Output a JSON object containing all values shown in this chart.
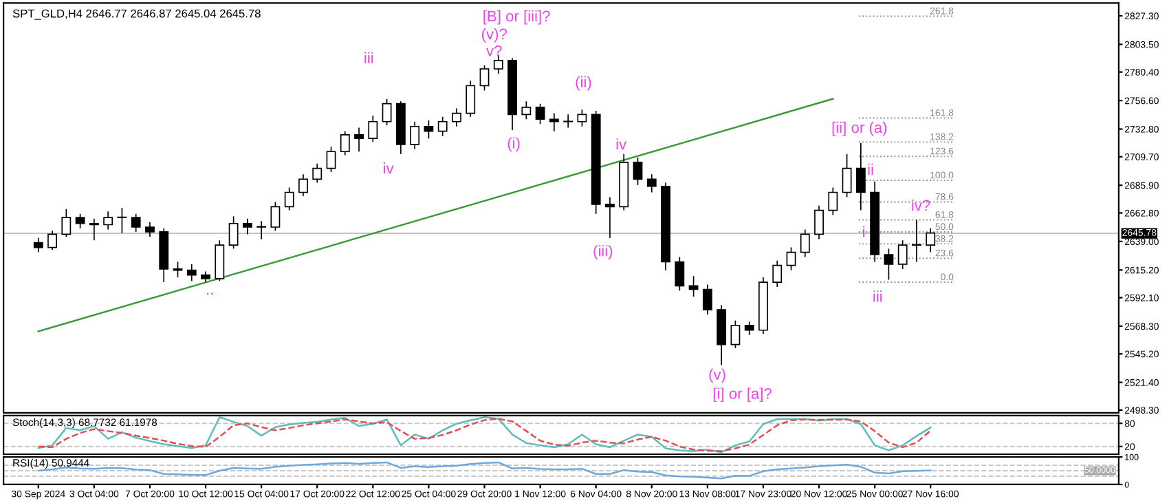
{
  "chart_data": [
    {
      "type": "candlestick",
      "title": "SPT_GLD,H4 2646.77 2646.87 2645.04 2645.78",
      "categories": [
        null,
        null,
        null,
        null,
        null,
        null,
        null,
        null,
        null,
        null,
        null,
        null,
        null,
        null,
        null,
        null,
        null,
        null,
        null,
        null,
        null,
        null,
        null,
        null,
        null,
        null,
        null,
        null,
        null,
        null,
        null,
        null,
        null,
        null,
        null,
        null,
        null,
        null,
        null,
        null,
        null,
        null,
        null,
        null,
        null,
        null,
        null,
        null,
        null,
        null,
        null,
        null,
        null,
        null,
        null,
        null,
        null,
        null,
        null,
        null,
        null,
        null,
        null,
        null,
        null,
        null,
        null,
        null,
        null,
        null,
        null,
        null,
        null,
        null,
        null,
        null,
        null,
        null,
        null,
        null
      ],
      "color": "#000000",
      "ohlc": [
        null,
        null,
        [
          2638,
          2642,
          2630,
          2634
        ],
        [
          2634,
          2648,
          2632,
          2645
        ],
        [
          2645,
          2666,
          2643,
          2659
        ],
        [
          2659,
          2662,
          2650,
          2654
        ],
        [
          2654,
          2658,
          2640,
          2653
        ],
        [
          2653,
          2664,
          2649,
          2659
        ],
        [
          2659,
          2667,
          2646,
          2659
        ],
        [
          2659,
          2662,
          2647,
          2651
        ],
        [
          2651,
          2655,
          2643,
          2647
        ],
        [
          2647,
          2650,
          2605,
          2616
        ],
        [
          2616,
          2622,
          2609,
          2615
        ],
        [
          2615,
          2620,
          2606,
          2611
        ],
        [
          2611,
          2614,
          2605,
          2608
        ],
        [
          2608,
          2640,
          2606,
          2636
        ],
        [
          2636,
          2660,
          2633,
          2654
        ],
        [
          2654,
          2658,
          2645,
          2651
        ],
        [
          2651,
          2656,
          2641,
          2651
        ],
        [
          2651,
          2672,
          2648,
          2668
        ],
        [
          2668,
          2684,
          2665,
          2680
        ],
        [
          2680,
          2695,
          2677,
          2691
        ],
        [
          2691,
          2704,
          2688,
          2700
        ],
        [
          2700,
          2718,
          2697,
          2714
        ],
        [
          2714,
          2731,
          2711,
          2728
        ],
        [
          2728,
          2734,
          2714,
          2725
        ],
        [
          2725,
          2744,
          2722,
          2739
        ],
        [
          2739,
          2758,
          2736,
          2754
        ],
        [
          2754,
          2756,
          2712,
          2720
        ],
        [
          2720,
          2739,
          2716,
          2735
        ],
        [
          2735,
          2740,
          2725,
          2731
        ],
        [
          2731,
          2743,
          2727,
          2739
        ],
        [
          2739,
          2750,
          2735,
          2746
        ],
        [
          2746,
          2773,
          2743,
          2769
        ],
        [
          2769,
          2786,
          2765,
          2783
        ],
        [
          2783,
          2795,
          2779,
          2790
        ],
        [
          2790,
          2792,
          2732,
          2745
        ],
        [
          2745,
          2756,
          2741,
          2751
        ],
        [
          2751,
          2754,
          2737,
          2741
        ],
        [
          2741,
          2746,
          2731,
          2739
        ],
        [
          2739,
          2745,
          2734,
          2739
        ],
        [
          2739,
          2749,
          2735,
          2745
        ],
        [
          2745,
          2748,
          2662,
          2670
        ],
        [
          2670,
          2676,
          2642,
          2668
        ],
        [
          2668,
          2712,
          2665,
          2705
        ],
        [
          2705,
          2709,
          2686,
          2691
        ],
        [
          2691,
          2695,
          2680,
          2685
        ],
        [
          2685,
          2688,
          2615,
          2622
        ],
        [
          2622,
          2626,
          2598,
          2602
        ],
        [
          2602,
          2610,
          2593,
          2599
        ],
        [
          2599,
          2603,
          2578,
          2582
        ],
        [
          2582,
          2586,
          2536,
          2553
        ],
        [
          2553,
          2573,
          2550,
          2569
        ],
        [
          2569,
          2572,
          2561,
          2565
        ],
        [
          2565,
          2609,
          2562,
          2605
        ],
        [
          2605,
          2623,
          2601,
          2619
        ],
        [
          2619,
          2634,
          2615,
          2630
        ],
        [
          2630,
          2649,
          2626,
          2645
        ],
        [
          2645,
          2669,
          2641,
          2665
        ],
        [
          2665,
          2684,
          2661,
          2680
        ],
        [
          2680,
          2712,
          2676,
          2700
        ],
        [
          2700,
          2721,
          2665,
          2680
        ],
        [
          2680,
          2689,
          2622,
          2628
        ],
        [
          2628,
          2633,
          2607,
          2620
        ],
        [
          2620,
          2640,
          2616,
          2636
        ],
        [
          2636,
          2657,
          2622,
          2636
        ],
        [
          2636,
          2650,
          2630,
          2646
        ],
        null,
        null,
        null,
        null,
        null,
        null,
        null,
        null,
        null,
        null,
        null,
        null,
        null
      ],
      "series": [
        {
          "type": "line",
          "color": "#3a9a3a",
          "values": [
            null,
            null,
            2564,
            null,
            null,
            null,
            null,
            null,
            null,
            null,
            null,
            null,
            null,
            null,
            null,
            null,
            null,
            null,
            null,
            null,
            null,
            null,
            null,
            null,
            null,
            null,
            null,
            null,
            null,
            null,
            null,
            null,
            null,
            null,
            null,
            null,
            null,
            null,
            null,
            null,
            null,
            null,
            null,
            null,
            null,
            null,
            null,
            null,
            null,
            null,
            null,
            null,
            null,
            null,
            null,
            null,
            null,
            null,
            null,
            2758,
            null,
            null,
            null,
            null,
            null,
            null,
            null,
            null,
            null,
            null,
            null,
            null,
            null,
            null,
            null,
            null,
            null,
            null,
            null,
            null
          ]
        }
      ],
      "ylim": [
        2496,
        2838
      ],
      "yticks": [
        {
          "value": 2498.3,
          "label": "2498.30"
        },
        {
          "value": 2521.4,
          "label": "2521.40"
        },
        {
          "value": 2545.2,
          "label": "2545.20"
        },
        {
          "value": 2568.3,
          "label": "2568.30"
        },
        {
          "value": 2592.1,
          "label": "2592.10"
        },
        {
          "value": 2615.2,
          "label": "2615.20"
        },
        {
          "value": 2639.0,
          "label": "2639.00"
        },
        {
          "value": 2662.8,
          "label": "2662.80"
        },
        {
          "value": 2685.9,
          "label": "2685.90"
        },
        {
          "value": 2709.7,
          "label": "2709.70"
        },
        {
          "value": 2732.8,
          "label": "2732.80"
        },
        {
          "value": 2756.6,
          "label": "2756.60"
        },
        {
          "value": 2780.4,
          "label": "2780.40"
        },
        {
          "value": 2803.5,
          "label": "2803.50"
        },
        {
          "value": 2827.3,
          "label": "2827.30"
        }
      ],
      "ref_lines": [
        {
          "axis": "y",
          "value": 2645.78,
          "label": "2645.78",
          "color": "#c0c0c0",
          "line_style": "solid"
        },
        {
          "axis": "y",
          "value": 2827,
          "color": "#909090",
          "line_style": "dotted"
        },
        {
          "axis": "y",
          "value": 2742,
          "color": "#909090",
          "line_style": "dotted"
        },
        {
          "axis": "y",
          "value": 2722,
          "color": "#909090",
          "line_style": "dotted"
        },
        {
          "axis": "y",
          "value": 2710,
          "color": "#909090",
          "line_style": "dotted"
        },
        {
          "axis": "y",
          "value": 2690,
          "color": "#909090",
          "line_style": "dotted"
        },
        {
          "axis": "y",
          "value": 2672,
          "color": "#909090",
          "line_style": "dotted"
        },
        {
          "axis": "y",
          "value": 2657,
          "color": "#909090",
          "line_style": "dotted"
        },
        {
          "axis": "y",
          "value": 2647,
          "color": "#909090",
          "line_style": "dotted"
        },
        {
          "axis": "y",
          "value": 2637,
          "color": "#909090",
          "line_style": "dotted"
        },
        {
          "axis": "y",
          "value": 2625,
          "color": "#909090",
          "line_style": "dotted"
        },
        {
          "axis": "y",
          "value": 2605,
          "color": "#909090",
          "line_style": "dotted"
        }
      ],
      "annotations": [
        "[B] or [iii]?",
        "(v)?",
        "v?",
        "iii",
        "iv",
        "(i)",
        "(ii)",
        "iv",
        "(iii)",
        "(v)",
        "[i] or [a]?",
        "[ii] or (a)",
        "ii",
        "i",
        "iii",
        "iv?",
        "..",
        "261.8",
        "161.8",
        "138.2",
        "123.6",
        "100.0",
        "78.6",
        "61.8",
        "50.0",
        "38.2",
        "23.6",
        "0.0"
      ],
      "tick_labels": "y",
      "grid": false,
      "legend": false
    },
    {
      "type": "line",
      "title": "Stoch(14,3,3) 68.7732 61.1978",
      "categories": [
        null,
        null,
        null,
        null,
        null,
        null,
        null,
        null,
        null,
        null,
        null,
        null,
        null,
        null,
        null,
        null,
        null,
        null,
        null,
        null,
        null,
        null,
        null,
        null,
        null,
        null,
        null,
        null,
        null,
        null,
        null,
        null,
        null,
        null,
        null,
        null,
        null,
        null,
        null,
        null,
        null,
        null,
        null,
        null,
        null,
        null,
        null,
        null,
        null,
        null,
        null,
        null,
        null,
        null,
        null,
        null,
        null,
        null,
        null,
        null,
        null,
        null,
        null,
        null,
        null,
        null,
        null,
        null,
        null,
        null,
        null,
        null,
        null,
        null,
        null,
        null,
        null,
        null,
        null,
        null
      ],
      "series": [
        {
          "color": "#5fbcbc",
          "line_style": "solid",
          "values": [
            null,
            null,
            16,
            23,
            68,
            62,
            73,
            40,
            57,
            43,
            34,
            26,
            21,
            16,
            23,
            96,
            84,
            73,
            48,
            70,
            77,
            81,
            84,
            90,
            94,
            73,
            79,
            90,
            23,
            51,
            40,
            62,
            79,
            88,
            96,
            92,
            51,
            29,
            23,
            18,
            26,
            51,
            26,
            18,
            35,
            51,
            45,
            15,
            10,
            8,
            12,
            5,
            23,
            33,
            78,
            91,
            91,
            91,
            87,
            91,
            91,
            78,
            23,
            10,
            23,
            47,
            69,
            null,
            null,
            null,
            null,
            null,
            null,
            null,
            null,
            null,
            null,
            null,
            null,
            null
          ]
        },
        {
          "color": "#e05050",
          "line_style": "dashed",
          "values": [
            null,
            null,
            20,
            18,
            40,
            55,
            65,
            60,
            55,
            48,
            42,
            35,
            27,
            21,
            19,
            45,
            75,
            80,
            70,
            62,
            68,
            75,
            80,
            85,
            90,
            85,
            80,
            83,
            60,
            40,
            42,
            50,
            62,
            77,
            88,
            92,
            85,
            60,
            35,
            25,
            22,
            30,
            35,
            30,
            28,
            38,
            45,
            35,
            20,
            12,
            9,
            8,
            15,
            25,
            50,
            75,
            88,
            90,
            89,
            89,
            90,
            85,
            60,
            30,
            18,
            30,
            61,
            null,
            null,
            null,
            null,
            null,
            null,
            null,
            null,
            null,
            null,
            null,
            null,
            null
          ]
        }
      ],
      "ylim": [
        0,
        100
      ],
      "yticks": [
        20,
        80
      ],
      "ref_lines": [
        {
          "axis": "y",
          "value": 80,
          "color": "#c8c8c8",
          "line_style": "dashed"
        },
        {
          "axis": "y",
          "value": 20,
          "color": "#c8c8c8",
          "line_style": "dashed"
        }
      ],
      "tick_labels": "y",
      "grid": false,
      "legend": false
    },
    {
      "type": "line",
      "title": "RSI(14) 50.9444",
      "categories": [
        null,
        null,
        "30 Sep 2024",
        null,
        null,
        null,
        "3 Oct 04:00",
        null,
        null,
        null,
        "7 Oct 20:00",
        null,
        null,
        null,
        "10 Oct 12:00",
        null,
        null,
        null,
        "15 Oct 04:00",
        null,
        null,
        null,
        "17 Oct 20:00",
        null,
        null,
        null,
        "22 Oct 12:00",
        null,
        null,
        null,
        "25 Oct 04:00",
        null,
        null,
        null,
        "29 Oct 20:00",
        null,
        null,
        null,
        "1 Nov 12:00",
        null,
        null,
        null,
        "6 Nov 04:00",
        null,
        null,
        null,
        "8 Nov 20:00",
        null,
        null,
        null,
        "13 Nov 08:00",
        null,
        null,
        null,
        "17 Nov 23:00",
        null,
        null,
        null,
        "20 Nov 12:00",
        null,
        null,
        null,
        "25 Nov 00:00",
        null,
        null,
        null,
        "27 Nov 16:00",
        null,
        null,
        null,
        null,
        null,
        null,
        null,
        null,
        null,
        null,
        null,
        null,
        null
      ],
      "series": [
        {
          "color": "#6fa8dc",
          "line_style": "solid",
          "values": [
            null,
            null,
            50,
            55,
            62,
            58,
            57,
            60,
            59,
            54,
            52,
            38,
            37,
            35,
            34,
            50,
            60,
            58,
            57,
            64,
            68,
            71,
            73,
            76,
            78,
            75,
            78,
            80,
            60,
            66,
            63,
            66,
            68,
            74,
            78,
            80,
            58,
            60,
            56,
            55,
            55,
            57,
            38,
            38,
            52,
            47,
            45,
            33,
            29,
            28,
            25,
            22,
            32,
            31,
            48,
            55,
            58,
            62,
            66,
            69,
            72,
            64,
            43,
            40,
            48,
            49,
            51,
            null,
            null,
            null,
            null,
            null,
            null,
            null,
            null,
            null,
            null,
            null,
            null,
            null
          ]
        }
      ],
      "ylim": [
        0,
        100
      ],
      "yticks": [
        0,
        100
      ],
      "ref_lines": [
        {
          "axis": "y",
          "value": 70,
          "color": "#c8c8c8",
          "line_style": "dashed"
        },
        {
          "axis": "y",
          "value": 30,
          "color": "#c8c8c8",
          "line_style": "dashed"
        },
        {
          "axis": "y",
          "value": 50,
          "label": "50.0000",
          "color": "#c8c8c8",
          "line_style": "dashed"
        }
      ],
      "grid": false,
      "legend": false
    }
  ]
}
